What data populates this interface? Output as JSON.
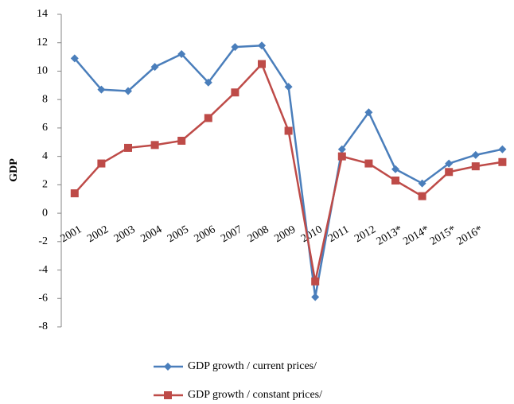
{
  "chart_data": {
    "type": "line",
    "y_label": "GDP",
    "categories": [
      "2001",
      "2002",
      "2003",
      "2004",
      "2005",
      "2006",
      "2007",
      "2008",
      "2009",
      "2010",
      "2011",
      "2012",
      "2013*",
      "2014*",
      "2015*",
      "2016*",
      null
    ],
    "series": [
      {
        "name": "GDP growth / current prices/",
        "color": "#4a7ebb",
        "marker": "diamond",
        "values": [
          10.9,
          8.7,
          8.6,
          10.3,
          11.2,
          9.2,
          11.7,
          11.8,
          8.9,
          -5.9,
          4.5,
          7.1,
          3.1,
          2.1,
          3.5,
          4.1,
          4.5
        ]
      },
      {
        "name": "GDP growth / constant prices/",
        "color": "#be4b48",
        "marker": "square",
        "values": [
          1.4,
          3.5,
          4.6,
          4.8,
          5.1,
          6.7,
          8.5,
          10.5,
          5.8,
          -4.8,
          4.0,
          3.5,
          2.3,
          1.2,
          2.9,
          3.3,
          3.6
        ]
      }
    ],
    "ylim": [
      -8,
      14
    ],
    "yticks": [
      -8,
      -6,
      -4,
      -2,
      0,
      2,
      4,
      6,
      8,
      10,
      12,
      14
    ],
    "grid": false
  }
}
